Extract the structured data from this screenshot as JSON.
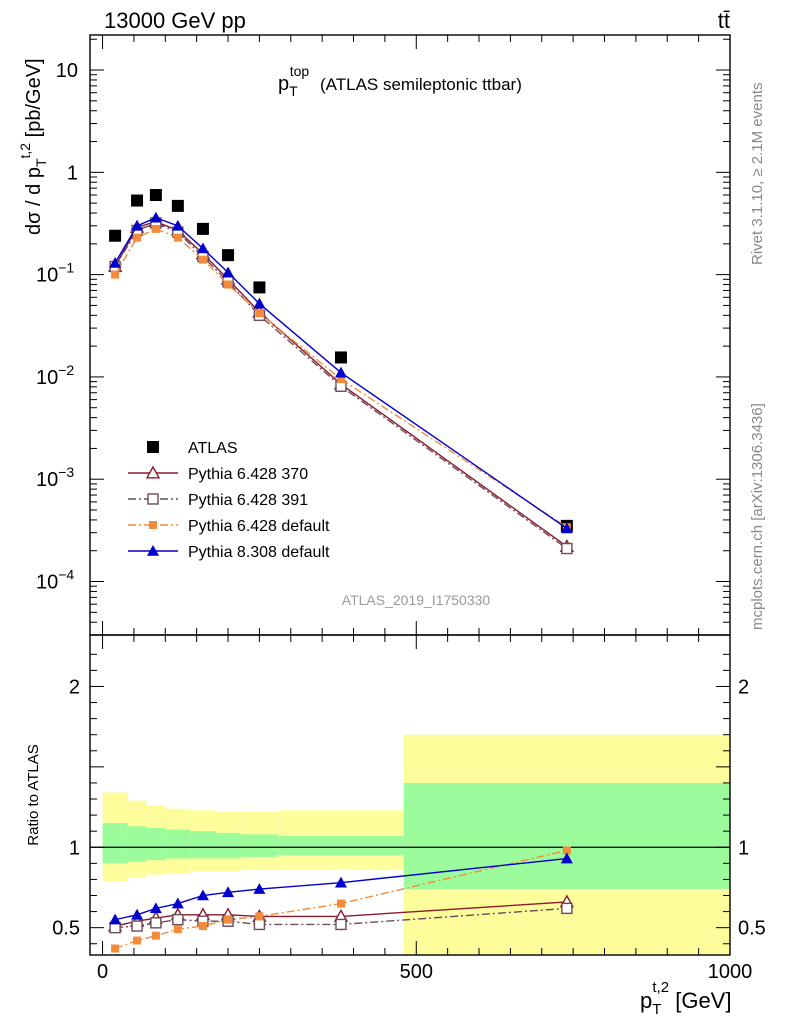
{
  "header": {
    "energy_label": "13000 GeV pp",
    "process_label": "tt̄"
  },
  "side_labels": {
    "rivet": "Rivet 3.1.10, ≥ 2.1M events",
    "mcplots": "mcplots.cern.ch [arXiv:1306.3436]"
  },
  "chart_data": {
    "type": "line",
    "title": "p_T^top (ATLAS semileptonic ttbar)",
    "title_main": "p",
    "title_sub": "T",
    "title_sup": "top",
    "title_rest": "(ATLAS semileptonic ttbar)",
    "analysis_id": "ATLAS_2019_I1750330",
    "xlabel": "p_T^{t,2} [GeV]",
    "ylabel": "dσ / d p_T^{t,2} [pb/GeV]",
    "ratio_ylabel": "Ratio to ATLAS",
    "xlim": [
      -20,
      1000
    ],
    "ylim_main": [
      3e-05,
      22
    ],
    "ylim_ratio": [
      0.33,
      2.32
    ],
    "x_ticks": [
      0,
      500,
      1000
    ],
    "main_y_ticks": [
      {
        "value": 0.0001,
        "base": "10",
        "exp": "−4"
      },
      {
        "value": 0.001,
        "base": "10",
        "exp": "−3"
      },
      {
        "value": 0.01,
        "base": "10",
        "exp": "−2"
      },
      {
        "value": 0.1,
        "base": "10",
        "exp": "−1"
      },
      {
        "value": 1,
        "base": "1",
        "exp": ""
      },
      {
        "value": 10,
        "base": "10",
        "exp": ""
      }
    ],
    "ratio_y_ticks": [
      0.5,
      1,
      2
    ],
    "x": [
      20,
      55,
      85,
      120,
      160,
      200,
      250,
      380,
      740
    ],
    "bin_edges": [
      0,
      40,
      70,
      100,
      140,
      180,
      220,
      280,
      480,
      1000
    ],
    "band_inner": [
      [
        0.9,
        1.15
      ],
      [
        0.91,
        1.13
      ],
      [
        0.92,
        1.12
      ],
      [
        0.93,
        1.11
      ],
      [
        0.93,
        1.1
      ],
      [
        0.93,
        1.09
      ],
      [
        0.94,
        1.08
      ],
      [
        0.95,
        1.07
      ],
      [
        0.74,
        1.4
      ]
    ],
    "band_outer": [
      [
        0.79,
        1.34
      ],
      [
        0.81,
        1.29
      ],
      [
        0.83,
        1.26
      ],
      [
        0.84,
        1.24
      ],
      [
        0.85,
        1.23
      ],
      [
        0.85,
        1.22
      ],
      [
        0.86,
        1.22
      ],
      [
        0.86,
        1.23
      ],
      [
        0.33,
        1.7
      ]
    ],
    "series": [
      {
        "name": "ATLAS",
        "marker": "square",
        "color": "#000000",
        "dash": "none",
        "values": [
          0.24,
          0.53,
          0.6,
          0.47,
          0.28,
          0.155,
          0.075,
          0.0155,
          0.00035
        ]
      },
      {
        "name": "Pythia 6.428 370",
        "marker": "triangle-open",
        "color": "#8b1a2b",
        "dash": "solid",
        "values": [
          0.12,
          0.29,
          0.33,
          0.27,
          0.16,
          0.09,
          0.043,
          0.0085,
          0.00022
        ],
        "ratio": [
          0.51,
          0.54,
          0.56,
          0.58,
          0.58,
          0.58,
          0.57,
          0.57,
          0.66
        ]
      },
      {
        "name": "Pythia 6.428 391",
        "marker": "square-open",
        "color": "#6b4a5a",
        "dash": "dashdot",
        "values": [
          0.12,
          0.27,
          0.32,
          0.26,
          0.15,
          0.085,
          0.04,
          0.0081,
          0.00021
        ],
        "ratio": [
          0.5,
          0.51,
          0.53,
          0.55,
          0.54,
          0.54,
          0.52,
          0.52,
          0.62
        ]
      },
      {
        "name": "Pythia 6.428 default",
        "marker": "square-small",
        "color": "#f28c3a",
        "dash": "dashdot",
        "values": [
          0.1,
          0.23,
          0.28,
          0.23,
          0.14,
          0.08,
          0.042,
          0.0095,
          0.00034
        ],
        "ratio": [
          0.37,
          0.42,
          0.45,
          0.49,
          0.51,
          0.55,
          0.57,
          0.65,
          0.98
        ]
      },
      {
        "name": "Pythia 8.308 default",
        "marker": "triangle",
        "color": "#0000cc",
        "dash": "solid",
        "values": [
          0.13,
          0.3,
          0.36,
          0.3,
          0.18,
          0.105,
          0.052,
          0.011,
          0.00033
        ],
        "ratio": [
          0.55,
          0.58,
          0.62,
          0.65,
          0.7,
          0.72,
          0.74,
          0.78,
          0.93
        ]
      }
    ],
    "band_colors": {
      "inner": "#9cfc9c",
      "outer": "#fdfd9c"
    }
  }
}
